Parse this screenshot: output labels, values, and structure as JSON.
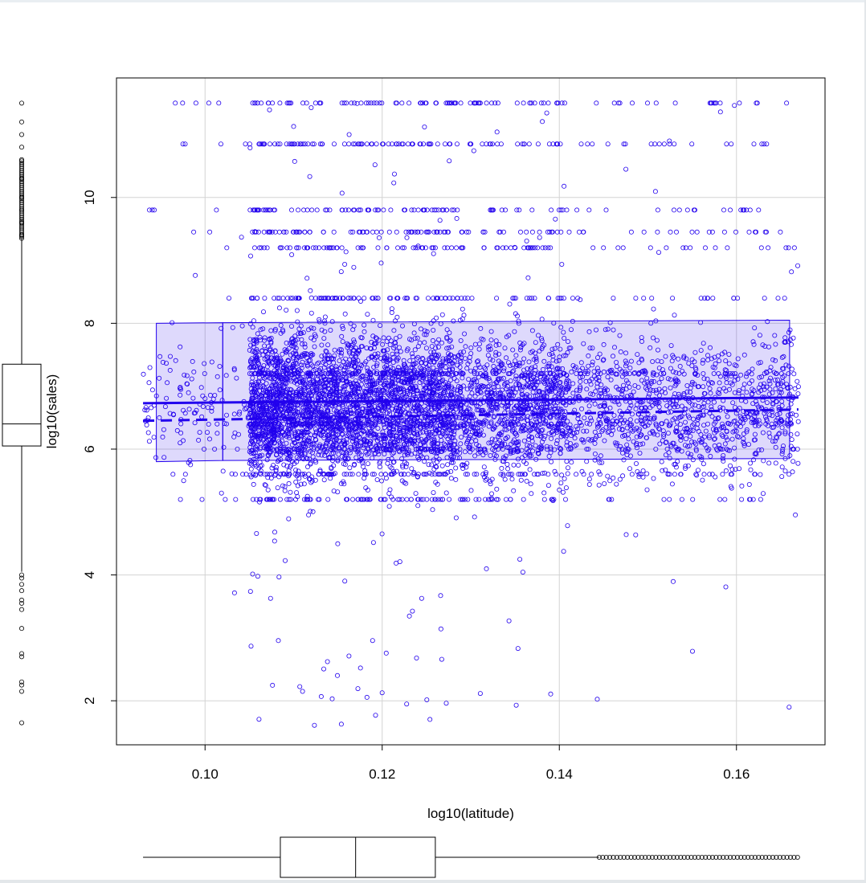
{
  "chart_data": {
    "type": "scatter",
    "xlabel": "log10(latitude)",
    "ylabel": "log10(sales)",
    "xlim": [
      0.09,
      0.17
    ],
    "ylim": [
      1.3,
      11.9
    ],
    "x_ticks": [
      {
        "value": 0.1,
        "label": "0.10"
      },
      {
        "value": 0.12,
        "label": "0.12"
      },
      {
        "value": 0.14,
        "label": "0.14"
      },
      {
        "value": 0.16,
        "label": "0.16"
      }
    ],
    "y_ticks": [
      {
        "value": 2,
        "label": "2"
      },
      {
        "value": 4,
        "label": "4"
      },
      {
        "value": 6,
        "label": "6"
      },
      {
        "value": 8,
        "label": "8"
      },
      {
        "value": 10,
        "label": "10"
      }
    ],
    "grid": true,
    "colors": {
      "points": "#2200ee",
      "smooth_line": "#2200ee",
      "spread_band": "#2200ee",
      "grid": "#d3d3d3"
    },
    "scatter_points_approx": {
      "x_range": [
        0.093,
        0.167
      ],
      "y_range": [
        1.6,
        11.5
      ],
      "dense_region_x": [
        0.105,
        0.14
      ],
      "dense_region_y": [
        5.0,
        9.8
      ]
    },
    "spread_bands": [
      {
        "x": [
          0.0945,
          0.102
        ],
        "lower": [
          5.8,
          5.82
        ],
        "upper": [
          8.0,
          8.01
        ]
      },
      {
        "x": [
          0.102,
          0.166
        ],
        "lower": [
          5.82,
          5.85
        ],
        "upper": [
          8.01,
          8.05
        ]
      }
    ],
    "mean_line": {
      "x": [
        0.093,
        0.167
      ],
      "y": [
        6.73,
        6.82
      ]
    },
    "median_line": {
      "x": [
        0.093,
        0.167
      ],
      "y": [
        6.45,
        6.63
      ]
    },
    "x_boxplot": {
      "whisker_low": 0.093,
      "q1": 0.1085,
      "median": 0.117,
      "q3": 0.126,
      "whisker_high": 0.1445,
      "outliers_range": [
        0.1445,
        0.167
      ]
    },
    "y_boxplot": {
      "whisker_low": 4.05,
      "q1": 6.05,
      "median": 6.4,
      "q3": 7.35,
      "whisker_high": 9.35,
      "outliers_low": [
        1.65,
        2.15,
        2.25,
        2.3,
        2.7,
        2.75,
        3.15,
        3.45,
        3.55,
        3.6,
        3.75,
        3.85,
        3.95,
        4.0
      ],
      "outliers_high": [
        9.4,
        9.6,
        9.8,
        10.0,
        10.3,
        10.6,
        10.8,
        11.0,
        11.2,
        11.5
      ]
    }
  }
}
